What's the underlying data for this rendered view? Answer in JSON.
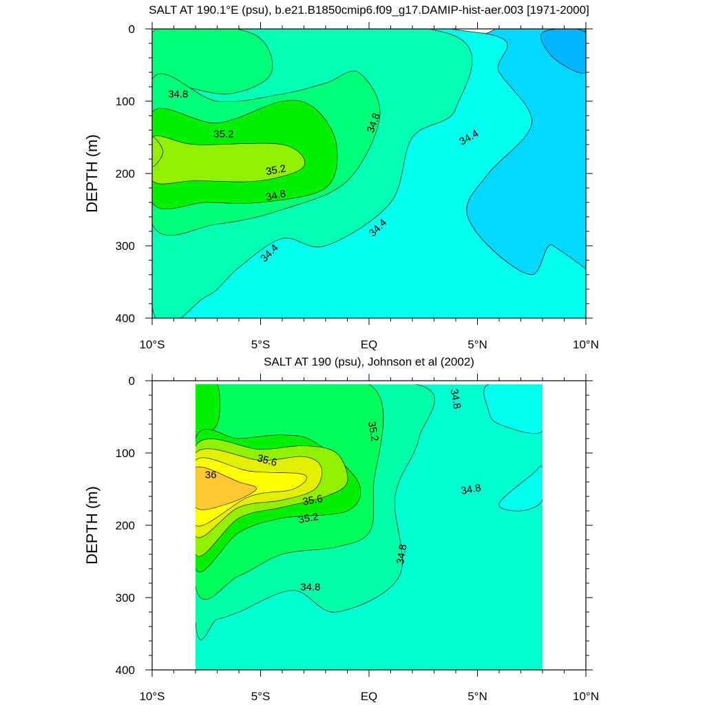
{
  "chart_data": [
    {
      "type": "contour",
      "title": "SALT AT 190.1°E (psu), b.e21.B1850cmip6.f09_g17.DAMIP-hist-aer.003 [1971-2000]",
      "ylabel": "DEPTH (m)",
      "xlabel": "",
      "xlim": [
        -10,
        10
      ],
      "ylim": [
        400,
        0
      ],
      "x_ticks": [
        -10,
        -5,
        0,
        5,
        10
      ],
      "x_tick_labels": [
        "10°S",
        "5°S",
        "EQ",
        "5°N",
        "10°N"
      ],
      "y_ticks": [
        0,
        100,
        200,
        300,
        400
      ],
      "y_tick_labels": [
        "0",
        "100",
        "200",
        "300",
        "400"
      ],
      "levels": [
        {
          "psu": 34.0,
          "color": "#00b4ff"
        },
        {
          "psu": 34.2,
          "color": "#00d8ff"
        },
        {
          "psu": 34.4,
          "color": "#33eaff"
        },
        {
          "psu": 34.6,
          "color": "#00ffec"
        },
        {
          "psu": 34.8,
          "color": "#00ffb4"
        },
        {
          "psu": 35.0,
          "color": "#00ff78"
        },
        {
          "psu": 35.2,
          "color": "#00f000"
        },
        {
          "psu": 35.4,
          "color": "#90f000"
        }
      ],
      "regions": [
        {
          "psu": 34.4,
          "points": [
            [
              -10,
              5
            ],
            [
              10,
              5
            ],
            [
              10,
              400
            ],
            [
              -10,
              400
            ]
          ]
        },
        {
          "psu": 34.2,
          "points": [
            [
              -10,
              5
            ],
            [
              -7.5,
              5
            ],
            [
              -8.5,
              35
            ],
            [
              -10,
              55
            ]
          ]
        },
        {
          "psu": 34.2,
          "points": [
            [
              5.5,
              5
            ],
            [
              10,
              5
            ],
            [
              10,
              400
            ],
            [
              8.5,
              300
            ],
            [
              7.5,
              340
            ],
            [
              5.5,
              300
            ],
            [
              4.5,
              250
            ],
            [
              5.5,
              200
            ],
            [
              7.5,
              130
            ],
            [
              6,
              60
            ]
          ]
        },
        {
          "psu": 34.0,
          "points": [
            [
              8,
              5
            ],
            [
              10,
              5
            ],
            [
              10,
              60
            ],
            [
              8.5,
              40
            ]
          ]
        },
        {
          "psu": 34.6,
          "points": [
            [
              -10,
              5
            ],
            [
              5,
              5
            ],
            [
              6,
              60
            ],
            [
              7.5,
              130
            ],
            [
              5.5,
              200
            ],
            [
              4.5,
              250
            ],
            [
              5.5,
              300
            ],
            [
              7.5,
              340
            ],
            [
              8.5,
              300
            ],
            [
              10,
              400
            ],
            [
              -10,
              400
            ]
          ]
        },
        {
          "psu": 34.8,
          "points": [
            [
              -10,
              5
            ],
            [
              3.5,
              5
            ],
            [
              4,
              110
            ],
            [
              2,
              150
            ],
            [
              1,
              240
            ],
            [
              -2,
              300
            ],
            [
              -4,
              290
            ],
            [
              -6,
              330
            ],
            [
              -7.5,
              370
            ],
            [
              -10,
              385
            ]
          ]
        },
        {
          "psu": 35.0,
          "points": [
            [
              -10,
              5
            ],
            [
              -5.5,
              5
            ],
            [
              -4.5,
              60
            ],
            [
              -6.5,
              90
            ],
            [
              -10,
              80
            ],
            [
              -10,
              180
            ]
          ]
        },
        {
          "psu": 35.0,
          "points": [
            [
              -10,
              70
            ],
            [
              -7,
              100
            ],
            [
              -4,
              90
            ],
            [
              -2,
              75
            ],
            [
              -0.5,
              60
            ],
            [
              0.5,
              120
            ],
            [
              -1,
              210
            ],
            [
              -4,
              250
            ],
            [
              -7,
              270
            ],
            [
              -10,
              270
            ]
          ]
        },
        {
          "psu": 35.2,
          "points": [
            [
              -10,
              115
            ],
            [
              -7,
              130
            ],
            [
              -4,
              100
            ],
            [
              -2.5,
              110
            ],
            [
              -1.5,
              160
            ],
            [
              -2,
              220
            ],
            [
              -5,
              240
            ],
            [
              -7.5,
              240
            ],
            [
              -10,
              240
            ]
          ]
        },
        {
          "psu": 35.4,
          "points": [
            [
              -10,
              150
            ],
            [
              -8,
              160
            ],
            [
              -4,
              160
            ],
            [
              -3,
              190
            ],
            [
              -5,
              210
            ],
            [
              -8,
              210
            ],
            [
              -10,
              210
            ]
          ]
        },
        {
          "psu": 35.6,
          "points": [
            [
              -10,
              150
            ],
            [
              -9.5,
              170
            ],
            [
              -10,
              190
            ]
          ]
        }
      ],
      "contour_labels": [
        {
          "text": "34.8",
          "x": -8.8,
          "y": 90,
          "angle": 0
        },
        {
          "text": "35.2",
          "x": -6.7,
          "y": 145,
          "angle": 0
        },
        {
          "text": "35.2",
          "x": -4.3,
          "y": 195,
          "angle": -10
        },
        {
          "text": "34.8",
          "x": -4.3,
          "y": 230,
          "angle": -12
        },
        {
          "text": "34.8",
          "x": 0.2,
          "y": 130,
          "angle": -70
        },
        {
          "text": "34.4",
          "x": 4.6,
          "y": 150,
          "angle": -30
        },
        {
          "text": "34.4",
          "x": 0.4,
          "y": 275,
          "angle": -45
        },
        {
          "text": "34.4",
          "x": -4.6,
          "y": 310,
          "angle": -45
        }
      ]
    },
    {
      "type": "contour",
      "title": "SALT AT 190 (psu), Johnson et al (2002)",
      "ylabel": "DEPTH (m)",
      "xlabel": "",
      "xlim": [
        -10,
        10
      ],
      "ylim": [
        400,
        0
      ],
      "x_ticks": [
        -10,
        -5,
        0,
        5,
        10
      ],
      "x_tick_labels": [
        "10°S",
        "5°S",
        "EQ",
        "5°N",
        "10°N"
      ],
      "y_ticks": [
        0,
        100,
        200,
        300,
        400
      ],
      "y_tick_labels": [
        "0",
        "100",
        "200",
        "300",
        "400"
      ],
      "data_extent": {
        "x": [
          -8,
          8
        ],
        "y": [
          5,
          400
        ]
      },
      "levels": [
        {
          "psu": 34.6,
          "color": "#00fff0"
        },
        {
          "psu": 34.8,
          "color": "#00ffd0"
        },
        {
          "psu": 35.0,
          "color": "#00ffa8"
        },
        {
          "psu": 35.2,
          "color": "#00ff5a"
        },
        {
          "psu": 35.4,
          "color": "#00f000"
        },
        {
          "psu": 35.6,
          "color": "#90f000"
        },
        {
          "psu": 35.8,
          "color": "#e0f000"
        },
        {
          "psu": 36.0,
          "color": "#ffff00"
        },
        {
          "psu": 36.2,
          "color": "#ffc830"
        }
      ],
      "regions": [
        {
          "psu": 34.8,
          "points": [
            [
              -8,
              5
            ],
            [
              8,
              5
            ],
            [
              8,
              400
            ],
            [
              -8,
              400
            ]
          ]
        },
        {
          "psu": 34.6,
          "points": [
            [
              5.5,
              5
            ],
            [
              8,
              5
            ],
            [
              8,
              70
            ],
            [
              6,
              60
            ],
            [
              5.5,
              40
            ]
          ]
        },
        {
          "psu": 34.6,
          "points": [
            [
              6,
              170
            ],
            [
              7.5,
              130
            ],
            [
              8,
              120
            ],
            [
              8,
              165
            ],
            [
              7,
              180
            ]
          ]
        },
        {
          "psu": 35.0,
          "points": [
            [
              -8,
              5
            ],
            [
              2.2,
              5
            ],
            [
              2.3,
              80
            ],
            [
              1.2,
              160
            ],
            [
              1.4,
              270
            ],
            [
              -1.5,
              320
            ],
            [
              -3.5,
              290
            ],
            [
              -6,
              320
            ],
            [
              -7,
              330
            ],
            [
              -8,
              335
            ]
          ]
        },
        {
          "psu": 35.2,
          "points": [
            [
              -8,
              5
            ],
            [
              0,
              5
            ],
            [
              0.2,
              150
            ],
            [
              0,
              210
            ],
            [
              -1.5,
              230
            ],
            [
              -4,
              240
            ],
            [
              -6,
              270
            ],
            [
              -8,
              285
            ]
          ]
        },
        {
          "psu": 35.4,
          "points": [
            [
              -8,
              5
            ],
            [
              -7,
              5
            ],
            [
              -7,
              60
            ],
            [
              -8,
              75
            ]
          ]
        },
        {
          "psu": 35.4,
          "points": [
            [
              -8,
              80
            ],
            [
              -6,
              80
            ],
            [
              -4,
              75
            ],
            [
              -2.5,
              85
            ],
            [
              -0.5,
              140
            ],
            [
              -1,
              180
            ],
            [
              -4,
              190
            ],
            [
              -6,
              210
            ],
            [
              -8,
              260
            ]
          ]
        },
        {
          "psu": 35.6,
          "points": [
            [
              -8,
              90
            ],
            [
              -5,
              95
            ],
            [
              -3,
              90
            ],
            [
              -1.5,
              100
            ],
            [
              -1,
              140
            ],
            [
              -2,
              160
            ],
            [
              -4,
              175
            ],
            [
              -6,
              190
            ],
            [
              -8,
              240
            ]
          ]
        },
        {
          "psu": 35.8,
          "points": [
            [
              -8,
              100
            ],
            [
              -5,
              110
            ],
            [
              -3,
              105
            ],
            [
              -2.2,
              120
            ],
            [
              -2.5,
              150
            ],
            [
              -4,
              165
            ],
            [
              -6,
              175
            ],
            [
              -8,
              215
            ]
          ]
        },
        {
          "psu": 36.0,
          "points": [
            [
              -8,
              110
            ],
            [
              -5.5,
              125
            ],
            [
              -3,
              130
            ],
            [
              -3.5,
              150
            ],
            [
              -5.5,
              160
            ],
            [
              -8,
              200
            ]
          ]
        },
        {
          "psu": 36.2,
          "points": [
            [
              -8,
              120
            ],
            [
              -6,
              140
            ],
            [
              -5.2,
              150
            ],
            [
              -6.5,
              170
            ],
            [
              -8,
              175
            ]
          ]
        }
      ],
      "contour_labels": [
        {
          "text": "34.8",
          "x": 4.0,
          "y": 25,
          "angle": 80
        },
        {
          "text": "35.2",
          "x": 0.2,
          "y": 70,
          "angle": 80
        },
        {
          "text": "35.6",
          "x": -4.7,
          "y": 110,
          "angle": 15
        },
        {
          "text": "36",
          "x": -7.3,
          "y": 130,
          "angle": 0
        },
        {
          "text": "35.6",
          "x": -2.6,
          "y": 165,
          "angle": -10
        },
        {
          "text": "35.2",
          "x": -2.8,
          "y": 190,
          "angle": -10
        },
        {
          "text": "34.8",
          "x": 4.7,
          "y": 150,
          "angle": -10
        },
        {
          "text": "34.8",
          "x": 1.5,
          "y": 240,
          "angle": -80
        },
        {
          "text": "34.8",
          "x": -2.7,
          "y": 285,
          "angle": 0
        }
      ]
    }
  ]
}
